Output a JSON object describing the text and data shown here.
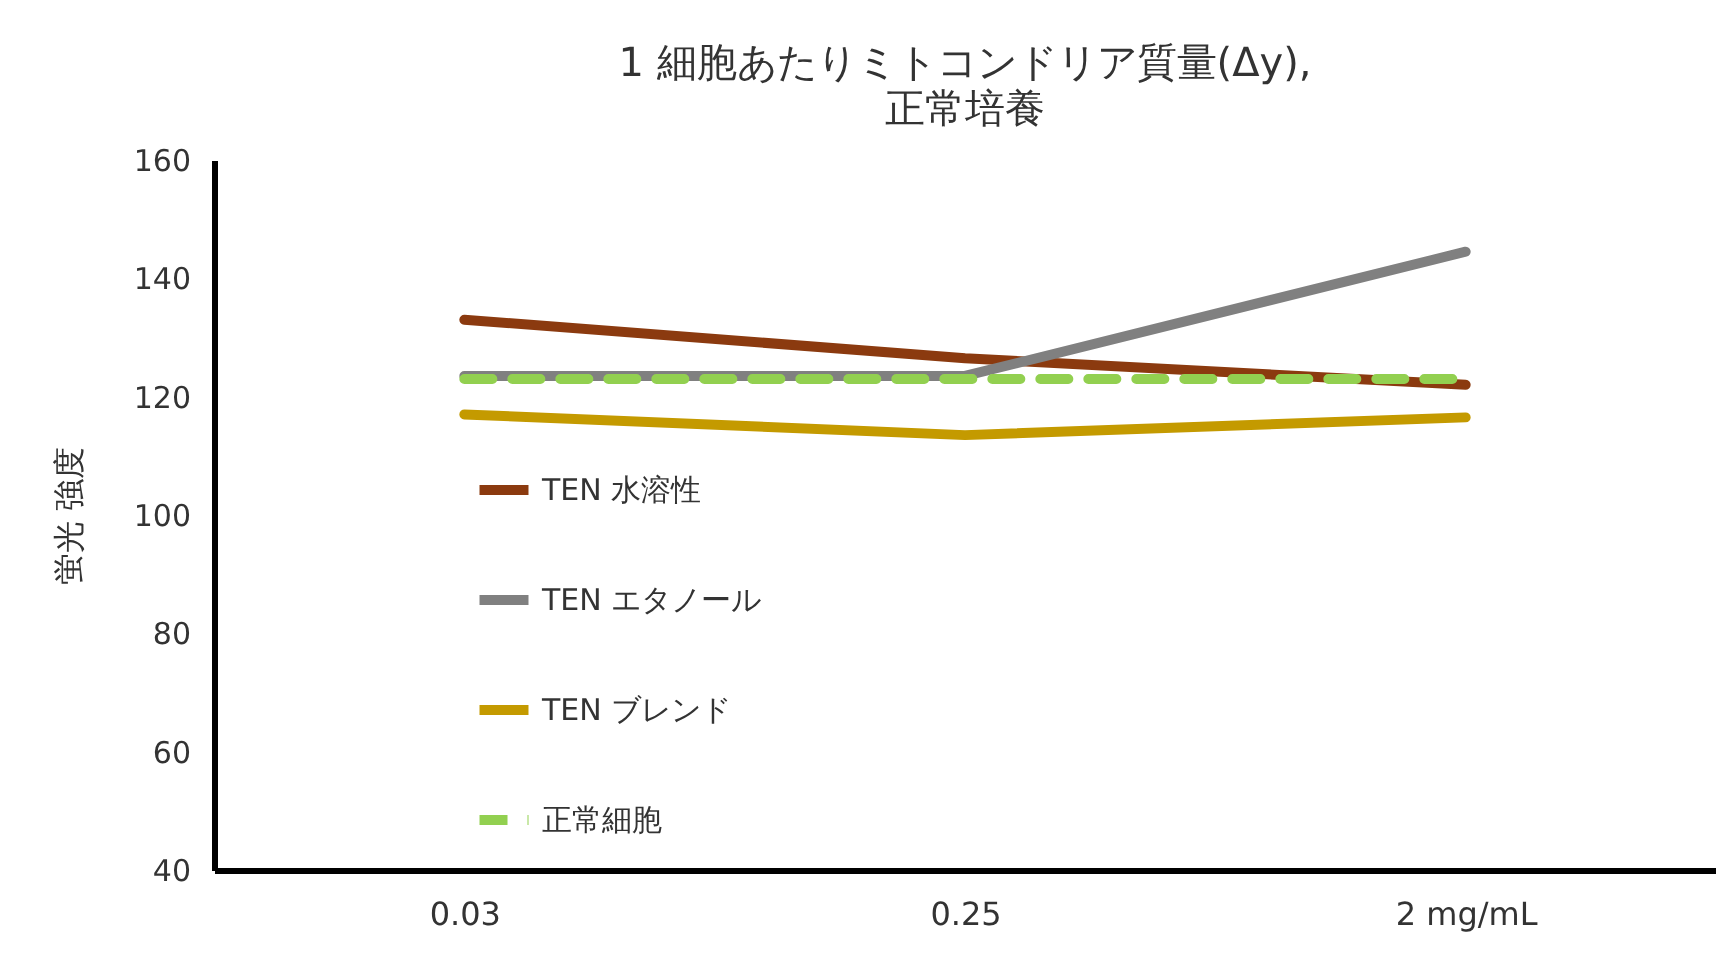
{
  "chart_data": {
    "type": "line",
    "title": "1 細胞あたりミトコンドリア質量(Δy),",
    "subtitle": "正常培養",
    "ylabel": "蛍光 強度",
    "categories": [
      "0.03",
      "0.25",
      "2 mg/mL"
    ],
    "ylim": [
      40,
      160
    ],
    "yticks": [
      40,
      60,
      80,
      100,
      120,
      140,
      160
    ],
    "grid": false,
    "legend": "left",
    "marker": "none",
    "series": [
      {
        "name": "TEN 水溶性",
        "color": "#8b3a0f",
        "values": [
          133,
          126.5,
          122
        ],
        "line_style": "solid"
      },
      {
        "name": "TEN エタノール",
        "color": "#808080",
        "values": [
          123.5,
          123.5,
          144.5
        ],
        "line_style": "solid"
      },
      {
        "name": "TEN ブレンド",
        "color": "#c49a00",
        "values": [
          117,
          113.5,
          116.5
        ],
        "line_style": "solid"
      },
      {
        "name": "正常細胞",
        "color": "#92d050",
        "values": [
          123,
          123,
          123
        ],
        "line_style": "dashed"
      }
    ]
  }
}
